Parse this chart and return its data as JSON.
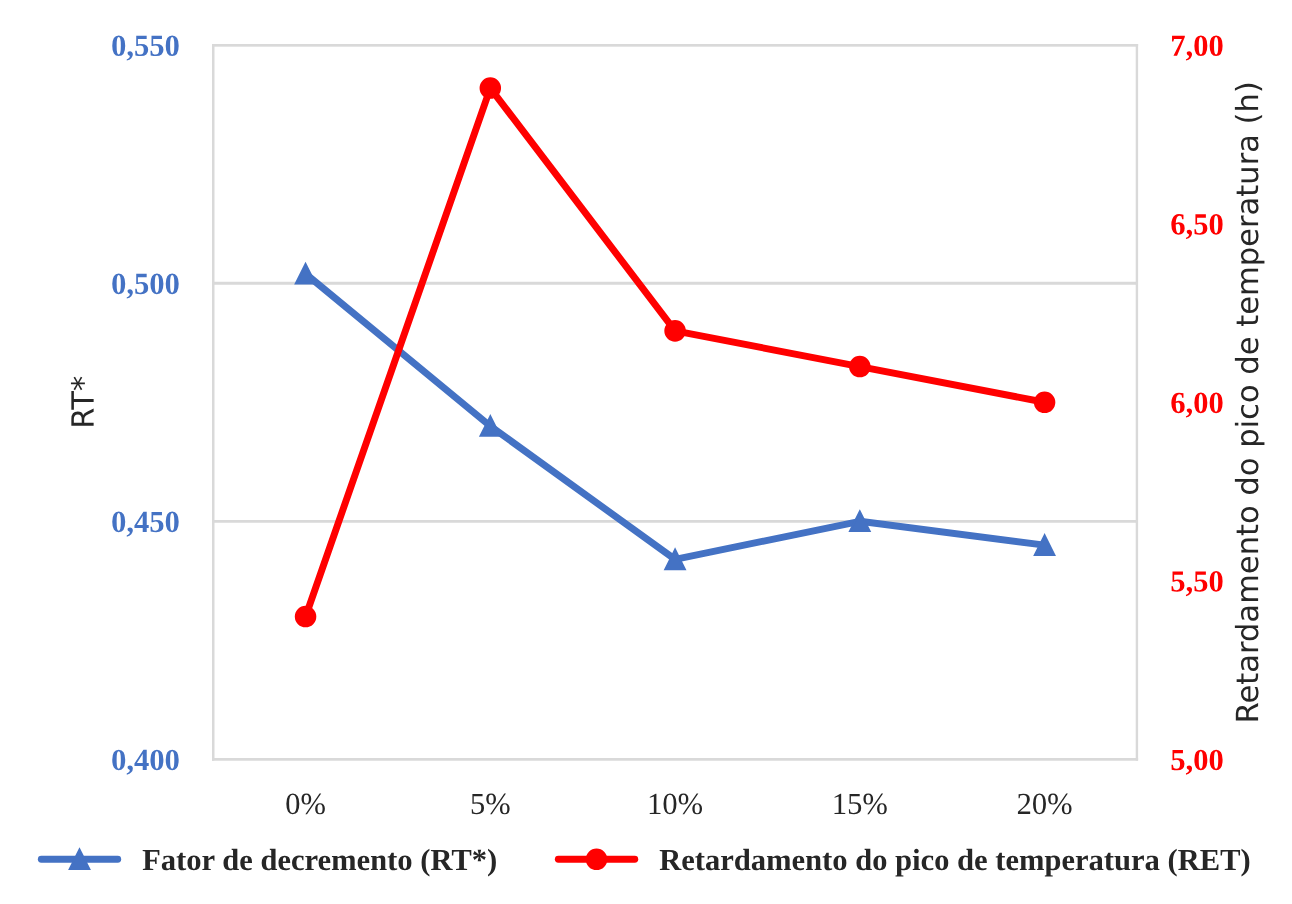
{
  "chart_data": {
    "type": "line",
    "ylabel": "RT*",
    "y2label": "Retardamento do pico de temperatura (h)",
    "categories": [
      "0%",
      "5%",
      "10%",
      "15%",
      "20%"
    ],
    "series": [
      {
        "name": "Fator de decremento (RT*)",
        "color": "#4472c4",
        "marker": "triangle",
        "values": [
          0.502,
          0.47,
          0.442,
          0.45,
          0.445
        ]
      },
      {
        "name": "Retardamento do pico de temperatura (RET)",
        "color": "#ff0000",
        "marker": "circle",
        "axis": "y2",
        "values": [
          5.4,
          6.88,
          6.2,
          6.1,
          6.0
        ]
      }
    ],
    "ylim": [
      0.4,
      0.55
    ],
    "yticks": [
      {
        "value": 0.4,
        "label": "0,400"
      },
      {
        "value": 0.45,
        "label": "0,450"
      },
      {
        "value": 0.5,
        "label": "0,500"
      },
      {
        "value": 0.55,
        "label": "0,550"
      }
    ],
    "y2lim": [
      5.0,
      7.0
    ],
    "y2ticks": [
      {
        "value": 5.0,
        "label": "5,00"
      },
      {
        "value": 5.5,
        "label": "5,50"
      },
      {
        "value": 6.0,
        "label": "6,00"
      },
      {
        "value": 6.5,
        "label": "6,50"
      },
      {
        "value": 7.0,
        "label": "7,00"
      }
    ],
    "grid": "y",
    "legend": "bottom",
    "line_style": "solid"
  }
}
